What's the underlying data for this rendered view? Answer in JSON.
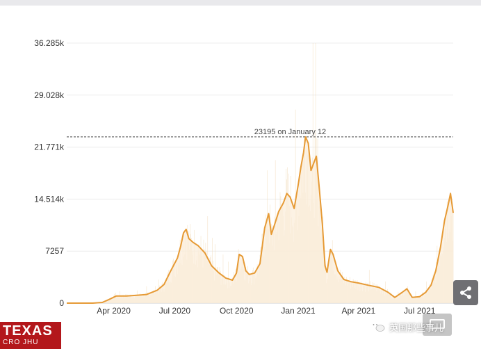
{
  "chart_data": {
    "type": "line",
    "title": "",
    "xlabel": "",
    "ylabel": "",
    "ylim": [
      0,
      36285
    ],
    "y_ticks": [
      {
        "value": 0,
        "label": "0"
      },
      {
        "value": 7257,
        "label": "7257"
      },
      {
        "value": 14514,
        "label": "14.514k"
      },
      {
        "value": 21771,
        "label": "21.771k"
      },
      {
        "value": 29028,
        "label": "29.028k"
      },
      {
        "value": 36285,
        "label": "36.285k"
      }
    ],
    "x_ticks": [
      {
        "date": "2020-04-01",
        "label": "Apr 2020"
      },
      {
        "date": "2020-07-01",
        "label": "Jul 2020"
      },
      {
        "date": "2020-10-01",
        "label": "Oct 2020"
      },
      {
        "date": "2021-01-01",
        "label": "Jan 2021"
      },
      {
        "date": "2021-04-01",
        "label": "Apr 2021"
      },
      {
        "date": "2021-07-01",
        "label": "Jul 2021"
      }
    ],
    "xlim": [
      "2020-01-22",
      "2021-08-20"
    ],
    "grid": true,
    "series": [
      {
        "name": "",
        "color": "#e69a35",
        "x": [
          "2020-01-22",
          "2020-03-01",
          "2020-03-15",
          "2020-03-25",
          "2020-04-05",
          "2020-04-20",
          "2020-05-05",
          "2020-05-20",
          "2020-06-05",
          "2020-06-15",
          "2020-06-25",
          "2020-07-05",
          "2020-07-10",
          "2020-07-14",
          "2020-07-18",
          "2020-07-22",
          "2020-07-28",
          "2020-08-05",
          "2020-08-15",
          "2020-08-25",
          "2020-09-05",
          "2020-09-15",
          "2020-09-25",
          "2020-10-01",
          "2020-10-05",
          "2020-10-10",
          "2020-10-15",
          "2020-10-20",
          "2020-10-28",
          "2020-11-05",
          "2020-11-12",
          "2020-11-18",
          "2020-11-22",
          "2020-11-27",
          "2020-12-03",
          "2020-12-10",
          "2020-12-15",
          "2020-12-20",
          "2020-12-26",
          "2021-01-01",
          "2021-01-05",
          "2021-01-09",
          "2021-01-12",
          "2021-01-16",
          "2021-01-20",
          "2021-01-24",
          "2021-01-28",
          "2021-02-01",
          "2021-02-06",
          "2021-02-10",
          "2021-02-13",
          "2021-02-18",
          "2021-02-22",
          "2021-03-01",
          "2021-03-10",
          "2021-03-20",
          "2021-04-01",
          "2021-04-15",
          "2021-05-01",
          "2021-05-15",
          "2021-05-25",
          "2021-06-05",
          "2021-06-12",
          "2021-06-20",
          "2021-07-01",
          "2021-07-10",
          "2021-07-18",
          "2021-07-25",
          "2021-08-01",
          "2021-08-07",
          "2021-08-12",
          "2021-08-16",
          "2021-08-20"
        ],
        "y": [
          0,
          0,
          100,
          500,
          1000,
          1000,
          1100,
          1200,
          1800,
          2600,
          4500,
          6300,
          8000,
          9800,
          10300,
          9000,
          8500,
          8000,
          7000,
          5200,
          4200,
          3500,
          3200,
          4200,
          6800,
          6500,
          4500,
          4000,
          4200,
          5500,
          10500,
          12500,
          9600,
          11000,
          12800,
          14000,
          15300,
          14800,
          13200,
          16500,
          19000,
          21000,
          23195,
          22300,
          18500,
          19500,
          20500,
          16500,
          11000,
          5200,
          4300,
          7500,
          6800,
          4500,
          3300,
          3000,
          2800,
          2500,
          2200,
          1500,
          800,
          1500,
          2000,
          800,
          900,
          1500,
          2500,
          4500,
          7800,
          11500,
          13500,
          15300,
          12600
        ]
      }
    ],
    "annotations": [
      {
        "type": "hline",
        "value": 23195,
        "style": "dashed",
        "label": "23195 on January 12"
      }
    ]
  },
  "watermark": {
    "logo_main": "TEXAS",
    "logo_sub": "CRO JHU",
    "wechat_text": "英国那些事儿",
    "wechat_icon": "wechat-icon"
  },
  "controls": {
    "share_icon": "share-icon",
    "fullscreen_icon": "fullscreen-icon"
  }
}
